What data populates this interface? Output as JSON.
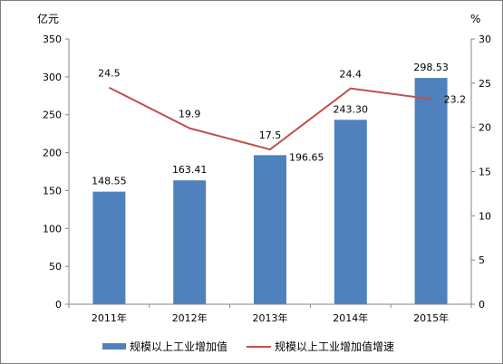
{
  "chart_data": {
    "type": "bar",
    "categories": [
      "2011年",
      "2012年",
      "2013年",
      "2014年",
      "2015年"
    ],
    "y_left_unit": "亿元",
    "y_right_unit": "%",
    "ylim_left": [
      0,
      350
    ],
    "ylim_right": [
      0,
      30
    ],
    "yticks_left": [
      0,
      50,
      100,
      150,
      200,
      250,
      300,
      350
    ],
    "yticks_right": [
      0,
      5,
      10,
      15,
      20,
      25,
      30
    ],
    "grid": false,
    "legend_position": "bottom",
    "series": [
      {
        "name": "规模以上工业增加值",
        "type": "bar",
        "axis": "left",
        "color": "#4f81bd",
        "values": [
          148.55,
          163.41,
          196.65,
          243.3,
          298.53
        ],
        "labels": [
          "148.55",
          "163.41",
          "196.65",
          "243.30",
          "298.53"
        ]
      },
      {
        "name": "规模以上工业增加值增速",
        "type": "line",
        "axis": "right",
        "color": "#c0504d",
        "values": [
          24.5,
          19.9,
          17.5,
          24.4,
          23.2
        ],
        "labels": [
          "24.5",
          "19.9",
          "17.5",
          "24.4",
          "23.2"
        ]
      }
    ]
  }
}
